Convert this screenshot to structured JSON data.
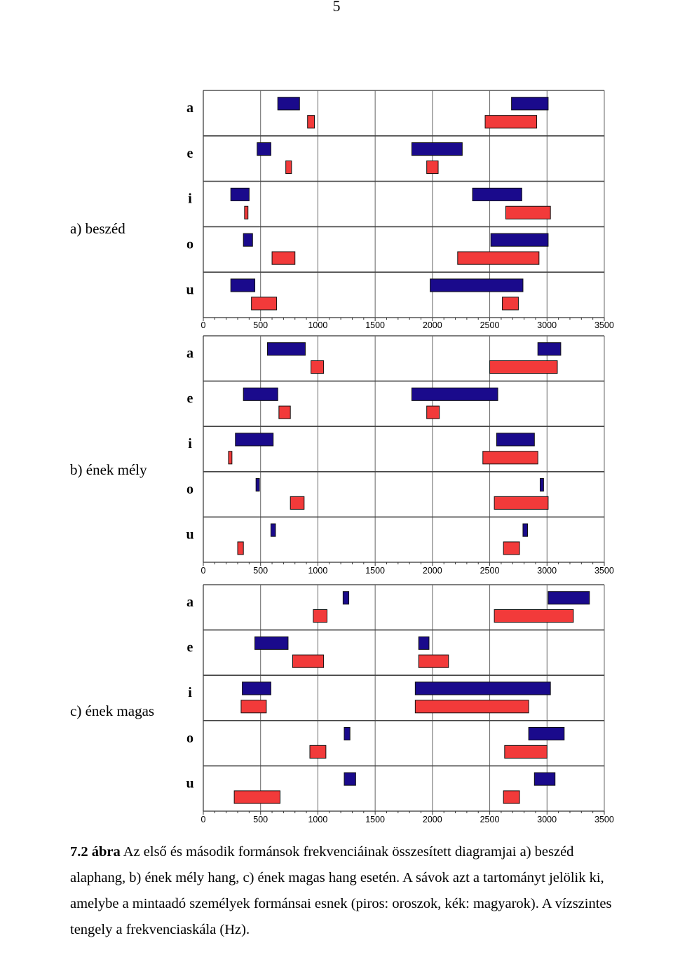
{
  "page_number": "5",
  "colors": {
    "hungarian": "#1a0a8c",
    "russian": "#f23a3a",
    "grid": "#666666"
  },
  "chart_data": [
    {
      "type": "bar",
      "panel_label": "a) beszéd",
      "categories": [
        "a",
        "e",
        "i",
        "o",
        "u"
      ],
      "xlim": [
        0,
        3500
      ],
      "xticks": [
        "0",
        "500",
        "1000",
        "1500",
        "2000",
        "2500",
        "3000",
        "3500"
      ],
      "series": [
        {
          "color": "#1a0a8c",
          "ranges": [
            [
              [
                650,
                840
              ],
              [
                2690,
                3010
              ]
            ],
            [
              [
                470,
                590
              ],
              [
                1820,
                2260
              ]
            ],
            [
              [
                240,
                400
              ],
              [
                2350,
                2780
              ]
            ],
            [
              [
                350,
                430
              ],
              [
                2510,
                3010
              ]
            ],
            [
              [
                240,
                450
              ],
              [
                1980,
                2790
              ]
            ]
          ]
        },
        {
          "color": "#f23a3a",
          "ranges": [
            [
              [
                910,
                970
              ],
              [
                2460,
                2910
              ]
            ],
            [
              [
                720,
                770
              ],
              [
                1950,
                2050
              ]
            ],
            [
              [
                360,
                390
              ],
              [
                2640,
                3030
              ]
            ],
            [
              [
                600,
                800
              ],
              [
                2220,
                2930
              ]
            ],
            [
              [
                420,
                640
              ],
              [
                2610,
                2750
              ]
            ]
          ]
        }
      ]
    },
    {
      "type": "bar",
      "panel_label": "b) ének mély",
      "categories": [
        "a",
        "e",
        "i",
        "o",
        "u"
      ],
      "xlim": [
        0,
        3500
      ],
      "xticks": [
        "0",
        "500",
        "1000",
        "1500",
        "2000",
        "2500",
        "3000",
        "3500"
      ],
      "series": [
        {
          "color": "#1a0a8c",
          "ranges": [
            [
              [
                560,
                890
              ],
              [
                2920,
                3120
              ]
            ],
            [
              [
                350,
                650
              ],
              [
                1820,
                2570
              ]
            ],
            [
              [
                280,
                610
              ],
              [
                2560,
                2890
              ]
            ],
            [
              [
                460,
                490
              ],
              [
                2940,
                2970
              ]
            ],
            [
              [
                590,
                630
              ],
              [
                2790,
                2830
              ]
            ]
          ]
        },
        {
          "color": "#f23a3a",
          "ranges": [
            [
              [
                940,
                1050
              ],
              [
                2500,
                3090
              ]
            ],
            [
              [
                660,
                760
              ],
              [
                1950,
                2060
              ]
            ],
            [
              [
                220,
                250
              ],
              [
                2440,
                2920
              ]
            ],
            [
              [
                760,
                880
              ],
              [
                2540,
                3010
              ]
            ],
            [
              [
                300,
                350
              ],
              [
                2620,
                2760
              ]
            ]
          ]
        }
      ]
    },
    {
      "type": "bar",
      "panel_label": "c) ének magas",
      "categories": [
        "a",
        "e",
        "i",
        "o",
        "u"
      ],
      "xlim": [
        0,
        3500
      ],
      "xticks": [
        "0",
        "500",
        "1000",
        "1500",
        "2000",
        "2500",
        "3000",
        "3500"
      ],
      "series": [
        {
          "color": "#1a0a8c",
          "ranges": [
            [
              [
                1220,
                1270
              ],
              [
                3010,
                3370
              ]
            ],
            [
              [
                450,
                740
              ],
              [
                1880,
                1970
              ]
            ],
            [
              [
                340,
                590
              ],
              [
                1850,
                3030
              ]
            ],
            [
              [
                1230,
                1280
              ],
              [
                2840,
                3150
              ]
            ],
            [
              [
                1230,
                1330
              ],
              [
                2890,
                3070
              ]
            ]
          ]
        },
        {
          "color": "#f23a3a",
          "ranges": [
            [
              [
                960,
                1080
              ],
              [
                2540,
                3230
              ]
            ],
            [
              [
                780,
                1050
              ],
              [
                1880,
                2140
              ]
            ],
            [
              [
                330,
                550
              ],
              [
                1850,
                2840
              ]
            ],
            [
              [
                930,
                1070
              ],
              [
                2630,
                3000
              ]
            ],
            [
              [
                270,
                670
              ],
              [
                2620,
                2760
              ]
            ]
          ]
        }
      ]
    }
  ],
  "caption": {
    "figure_number": "7.2 ábra",
    "text": " Az első és második formánsok frekvenciáinak összesített diagramjai a) beszéd alaphang, b) ének mély hang, c) ének magas hang esetén. A sávok azt a tartományt jelölik ki, amelybe a mintaadó személyek formánsai esnek (piros: oroszok, kék: magyarok). A vízszintes tengely a frekvenciaskála (Hz)."
  }
}
